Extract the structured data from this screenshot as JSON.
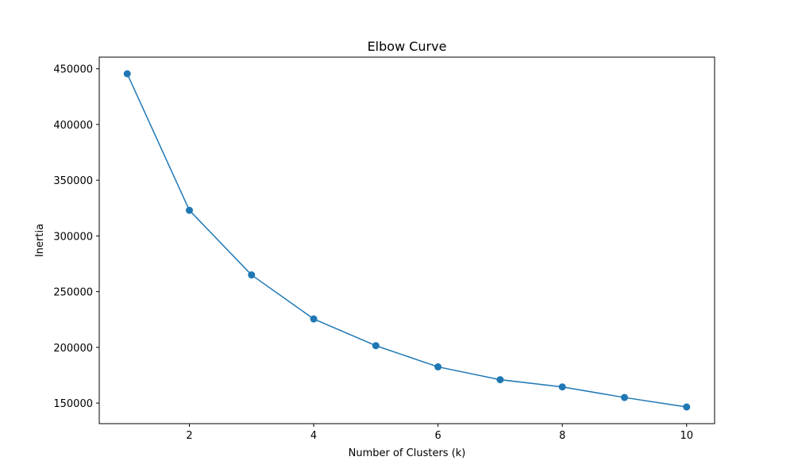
{
  "chart_data": {
    "type": "line",
    "title": "Elbow Curve",
    "xlabel": "Number of Clusters (k)",
    "ylabel": "Inertia",
    "x": [
      1,
      2,
      3,
      4,
      5,
      6,
      7,
      8,
      9,
      10
    ],
    "series": [
      {
        "name": "Inertia",
        "values": [
          445500,
          323000,
          265000,
          225500,
          201500,
          182500,
          171000,
          164500,
          155000,
          146500
        ],
        "color": "#1f77b4",
        "marker": "circle"
      }
    ],
    "xlim": [
      0.55,
      10.45
    ],
    "ylim": [
      131550,
      460450
    ],
    "xticks": [
      2,
      4,
      6,
      8,
      10
    ],
    "yticks": [
      150000,
      200000,
      250000,
      300000,
      350000,
      400000,
      450000
    ],
    "xtick_labels": [
      "2",
      "4",
      "6",
      "8",
      "10"
    ],
    "ytick_labels": [
      "150000",
      "200000",
      "250000",
      "300000",
      "350000",
      "400000",
      "450000"
    ],
    "grid": false,
    "legend": "none"
  }
}
